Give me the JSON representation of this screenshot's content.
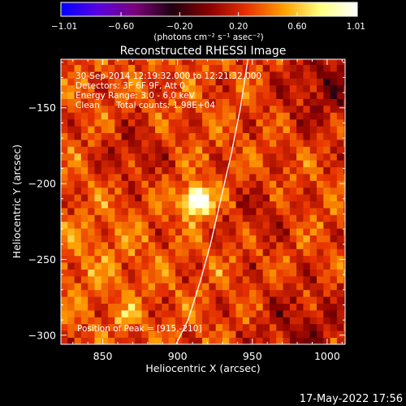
{
  "chart_data": {
    "type": "heatmap",
    "title": "Reconstructed RHESSI Image",
    "xlabel": "Heliocentric X (arcsec)",
    "ylabel": "Heliocentric Y (arcsec)",
    "xlim": [
      822,
      1012
    ],
    "ylim": [
      -306,
      -118
    ],
    "x_ticks": [
      850,
      900,
      950,
      1000
    ],
    "x_tick_labels": [
      "850",
      "900",
      "950",
      "1000"
    ],
    "y_ticks": [
      -150,
      -200,
      -250,
      -300
    ],
    "y_tick_labels": [
      "−150",
      "−200",
      "−250",
      "−300"
    ],
    "colorbar": {
      "range": [
        -1.01,
        1.01
      ],
      "tick_values": [
        -1.01,
        -0.6,
        -0.2,
        0.2,
        0.6,
        1.01
      ],
      "tick_labels": [
        "−1.01",
        "−0.60",
        "−0.20",
        "0.20",
        "0.60",
        "1.01"
      ],
      "unit_label": "(photons cm⁻² s⁻¹ asec⁻²)",
      "colormap": [
        "#0000ff",
        "#5a00e0",
        "#7a007a",
        "#200010",
        "#8a0000",
        "#e63000",
        "#ff9d00",
        "#ffff80",
        "#ffffff"
      ]
    },
    "annotations": {
      "time_range": "30-Sep-2014 12:19:32.000 to 12:21:32.000",
      "detectors": "Detectors: 3F 6F 9F, Att 0",
      "energy_range": "Energy Range: 3.0 - 6.0 keV",
      "method": "Clean",
      "total_counts": "Total counts: 1.98E+04",
      "peak_position": "Position of Peak = [915,-210]"
    },
    "peak": {
      "x": 915,
      "y": -210,
      "value": 1.01
    },
    "sources": [
      {
        "x": 913,
        "y": -211,
        "amplitude": 1.15,
        "sigma": 6
      },
      {
        "x": 866,
        "y": -287,
        "amplitude": 0.35,
        "sigma": 4
      }
    ],
    "limb_curve": {
      "x": [
        947,
        942,
        936,
        929,
        922,
        915,
        907,
        899
      ],
      "y": [
        -118,
        -150,
        -180,
        -210,
        -240,
        -265,
        -290,
        -306
      ]
    },
    "timestamp": "17-May-2022 17:56"
  }
}
